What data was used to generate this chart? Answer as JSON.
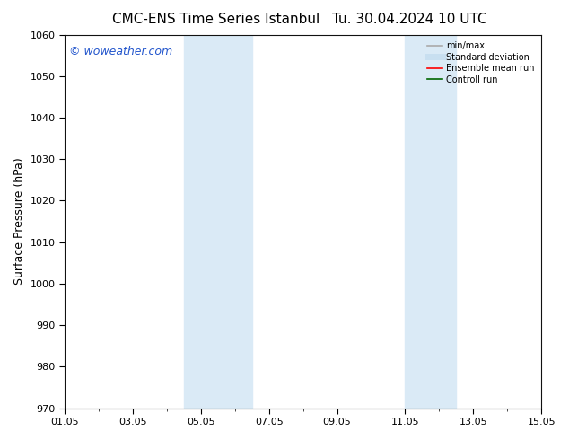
{
  "title_left": "CMC-ENS Time Series Istanbul",
  "title_right": "Tu. 30.04.2024 10 UTC",
  "ylabel": "Surface Pressure (hPa)",
  "ylim": [
    970,
    1060
  ],
  "yticks": [
    970,
    980,
    990,
    1000,
    1010,
    1020,
    1030,
    1040,
    1050,
    1060
  ],
  "xlim": [
    0,
    14
  ],
  "xtick_labels": [
    "01.05",
    "03.05",
    "05.05",
    "07.05",
    "09.05",
    "11.05",
    "13.05",
    "15.05"
  ],
  "xtick_positions": [
    0,
    2,
    4,
    6,
    8,
    10,
    12,
    14
  ],
  "shaded_regions": [
    {
      "start": 3.5,
      "end": 5.5
    },
    {
      "start": 10.0,
      "end": 11.5
    }
  ],
  "shaded_color": "#daeaf6",
  "background_color": "#ffffff",
  "watermark_text": "© woweather.com",
  "watermark_color": "#2255cc",
  "legend_items": [
    {
      "label": "min/max",
      "color": "#aaaaaa",
      "lw": 1.2,
      "style": "solid"
    },
    {
      "label": "Standard deviation",
      "color": "#c8dff0",
      "lw": 5,
      "style": "solid"
    },
    {
      "label": "Ensemble mean run",
      "color": "#ff0000",
      "lw": 1.2,
      "style": "solid"
    },
    {
      "label": "Controll run",
      "color": "#006600",
      "lw": 1.2,
      "style": "solid"
    }
  ],
  "title_fontsize": 11,
  "tick_fontsize": 8,
  "label_fontsize": 9,
  "watermark_fontsize": 9
}
